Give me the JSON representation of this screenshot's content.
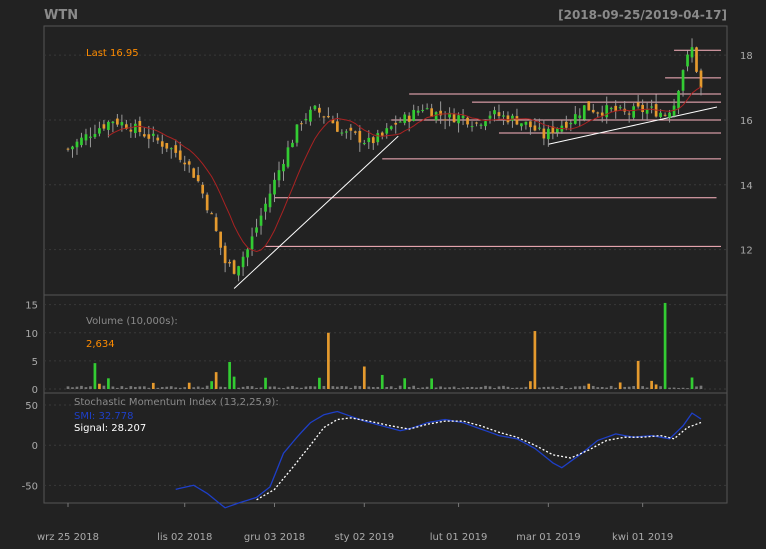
{
  "header": {
    "symbol": "WTN",
    "date_range": "[2018-09-25/2019-04-17]"
  },
  "colors": {
    "background": "#222222",
    "panel_border": "#555555",
    "grid": "#3a3a3a",
    "axis_text": "#aaaaaa",
    "title_text": "#8a8a8a",
    "up": "#33cc33",
    "down": "#e59a2e",
    "highlight": "#ff8c00",
    "ma_line": "#aa2222",
    "smi_line": "#1e3fc8",
    "signal_line": "#ffffff",
    "support_lines": "#ffb6c1",
    "trend_lines": "#ffffff"
  },
  "chart_data": [
    {
      "type": "candlestick",
      "name": "price",
      "title": "WTN",
      "subtitle": "[2018-09-25/2019-04-17]",
      "last_label": "Last 16.95",
      "ylim": [
        10.6,
        18.9
      ],
      "yticks": [
        12,
        14,
        16,
        18
      ],
      "ytick_labels": [
        "12",
        "14",
        "16",
        "18"
      ],
      "x_labels": [
        "wrz 25 2018",
        "lis 02 2018",
        "gru 03 2018",
        "sty 02 2019",
        "lut 01 2019",
        "mar 01 2019",
        "kwi 01 2019"
      ],
      "x_label_index": [
        0,
        26,
        46,
        66,
        87,
        107,
        128
      ],
      "n_bars": 142,
      "anchors": [
        [
          0,
          15.1
        ],
        [
          3,
          15.4
        ],
        [
          6,
          15.7
        ],
        [
          10,
          16.0
        ],
        [
          14,
          15.8
        ],
        [
          18,
          15.5
        ],
        [
          22,
          15.2
        ],
        [
          26,
          14.8
        ],
        [
          29,
          14.1
        ],
        [
          32,
          13.0
        ],
        [
          35,
          11.6
        ],
        [
          37,
          11.4
        ],
        [
          40,
          12.0
        ],
        [
          44,
          13.4
        ],
        [
          48,
          14.8
        ],
        [
          52,
          16.0
        ],
        [
          55,
          16.3
        ],
        [
          58,
          16.1
        ],
        [
          61,
          15.6
        ],
        [
          64,
          15.5
        ],
        [
          67,
          15.3
        ],
        [
          70,
          15.5
        ],
        [
          73,
          15.9
        ],
        [
          76,
          16.1
        ],
        [
          79,
          16.4
        ],
        [
          82,
          16.2
        ],
        [
          85,
          16.1
        ],
        [
          88,
          16.1
        ],
        [
          91,
          15.9
        ],
        [
          94,
          16.2
        ],
        [
          97,
          16.1
        ],
        [
          100,
          16.0
        ],
        [
          103,
          15.8
        ],
        [
          106,
          15.5
        ],
        [
          109,
          15.8
        ],
        [
          112,
          16.0
        ],
        [
          115,
          16.4
        ],
        [
          118,
          16.3
        ],
        [
          121,
          16.3
        ],
        [
          124,
          16.2
        ],
        [
          127,
          16.3
        ],
        [
          130,
          16.3
        ],
        [
          133,
          16.2
        ],
        [
          135,
          16.5
        ],
        [
          137,
          17.6
        ],
        [
          139,
          18.2
        ],
        [
          141,
          16.95
        ]
      ],
      "horizontal_levels": [
        {
          "y": 18.15,
          "x_from": 135,
          "x_to": 141
        },
        {
          "y": 17.3,
          "x_from": 133,
          "x_to": 141
        },
        {
          "y": 16.8,
          "x_from": 76,
          "x_to": 141
        },
        {
          "y": 16.55,
          "x_from": 90,
          "x_to": 141
        },
        {
          "y": 16.0,
          "x_from": 72,
          "x_to": 141
        },
        {
          "y": 15.6,
          "x_from": 96,
          "x_to": 141
        },
        {
          "y": 14.8,
          "x_from": 70,
          "x_to": 141
        },
        {
          "y": 13.6,
          "x_from": 46,
          "x_to": 140
        },
        {
          "y": 12.1,
          "x_from": 44,
          "x_to": 141
        }
      ],
      "trend_lines": [
        {
          "x1": 37,
          "y1": 10.8,
          "x2": 70,
          "y2": 15.5
        },
        {
          "x1": 107,
          "y1": 15.25,
          "x2": 141,
          "y2": 16.4
        }
      ],
      "ma_period": 10
    },
    {
      "type": "bar",
      "name": "volume",
      "title": "Volume (10,000s):",
      "last_value_label": "2,634",
      "ylim": [
        0,
        16
      ],
      "yticks": [
        0,
        5,
        10,
        15
      ],
      "ytick_labels": [
        "0",
        "5",
        "10",
        "15"
      ],
      "spikes": [
        [
          6,
          4.6,
          "up"
        ],
        [
          33,
          3.0,
          "down"
        ],
        [
          36,
          4.8,
          "up"
        ],
        [
          37,
          2.2,
          "up"
        ],
        [
          44,
          2.0,
          "up"
        ],
        [
          56,
          2.0,
          "up"
        ],
        [
          58,
          10.0,
          "down"
        ],
        [
          66,
          4.0,
          "down"
        ],
        [
          70,
          2.5,
          "up"
        ],
        [
          104,
          10.3,
          "down"
        ],
        [
          127,
          5.0,
          "down"
        ],
        [
          133,
          15.3,
          "up"
        ]
      ]
    },
    {
      "type": "line",
      "name": "smi",
      "title": "Stochastic Momentum Index (13,2,25,9):",
      "series": [
        {
          "name": "SMI",
          "label": "SMI: 32.778",
          "color": "#1e3fc8"
        },
        {
          "name": "Signal",
          "label": "Signal: 28.207",
          "color": "#ffffff"
        }
      ],
      "ylim": [
        -72,
        65
      ],
      "yticks": [
        -50,
        0,
        50
      ],
      "ytick_labels": [
        "-50",
        "0",
        "50"
      ],
      "smi_anchors": [
        [
          24,
          -55
        ],
        [
          28,
          -50
        ],
        [
          31,
          -60
        ],
        [
          35,
          -78
        ],
        [
          38,
          -72
        ],
        [
          42,
          -65
        ],
        [
          45,
          -52
        ],
        [
          48,
          -10
        ],
        [
          51,
          10
        ],
        [
          54,
          28
        ],
        [
          57,
          38
        ],
        [
          60,
          42
        ],
        [
          63,
          36
        ],
        [
          66,
          30
        ],
        [
          70,
          24
        ],
        [
          74,
          18
        ],
        [
          77,
          22
        ],
        [
          80,
          28
        ],
        [
          84,
          32
        ],
        [
          88,
          28
        ],
        [
          92,
          20
        ],
        [
          96,
          12
        ],
        [
          100,
          8
        ],
        [
          104,
          -4
        ],
        [
          108,
          -22
        ],
        [
          110,
          -28
        ],
        [
          114,
          -12
        ],
        [
          118,
          6
        ],
        [
          122,
          14
        ],
        [
          126,
          10
        ],
        [
          130,
          12
        ],
        [
          134,
          8
        ],
        [
          137,
          24
        ],
        [
          139,
          40
        ],
        [
          141,
          32.778
        ]
      ],
      "signal_anchors": [
        [
          42,
          -68
        ],
        [
          46,
          -55
        ],
        [
          50,
          -28
        ],
        [
          54,
          0
        ],
        [
          57,
          22
        ],
        [
          60,
          32
        ],
        [
          63,
          34
        ],
        [
          67,
          30
        ],
        [
          72,
          24
        ],
        [
          76,
          20
        ],
        [
          80,
          26
        ],
        [
          84,
          30
        ],
        [
          88,
          30
        ],
        [
          92,
          24
        ],
        [
          96,
          16
        ],
        [
          100,
          10
        ],
        [
          104,
          0
        ],
        [
          108,
          -12
        ],
        [
          112,
          -16
        ],
        [
          116,
          -6
        ],
        [
          120,
          6
        ],
        [
          124,
          10
        ],
        [
          128,
          10
        ],
        [
          132,
          12
        ],
        [
          135,
          8
        ],
        [
          138,
          22
        ],
        [
          141,
          28.207
        ]
      ]
    }
  ]
}
